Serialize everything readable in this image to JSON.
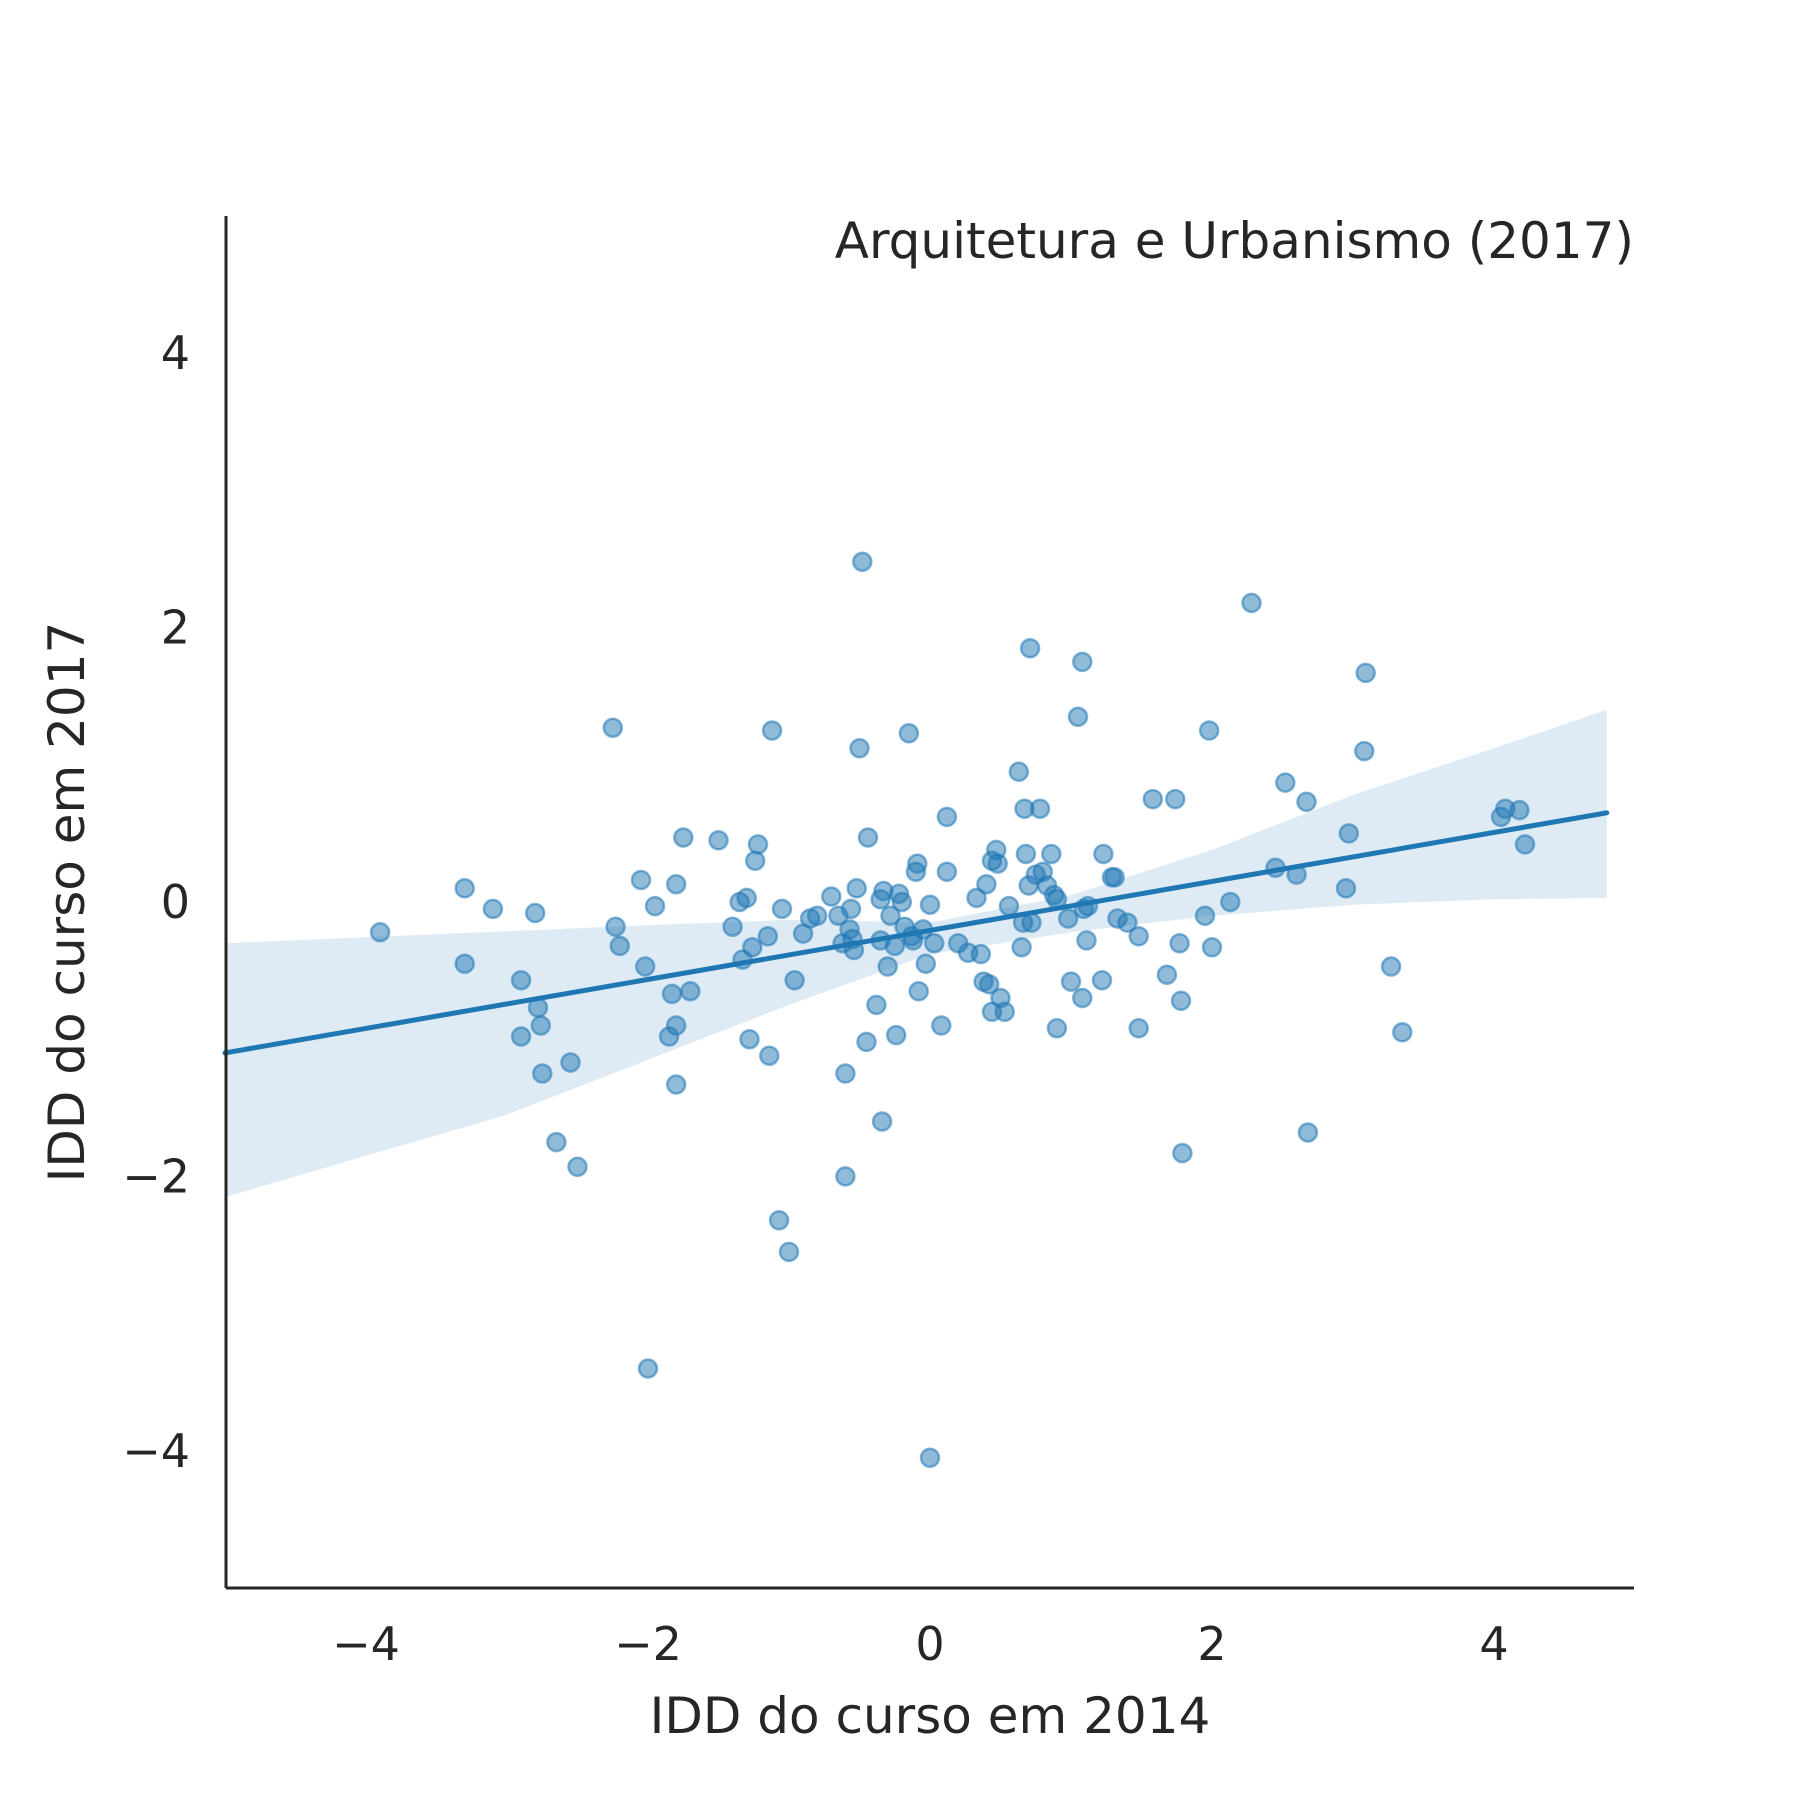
{
  "chart_data": {
    "type": "scatter",
    "title": "Arquitetura e Urbanismo (2017)",
    "xlabel": "IDD do curso em 2014",
    "ylabel": "IDD do curso em 2017",
    "xlim": [
      -5,
      5
    ],
    "ylim": [
      -5,
      5
    ],
    "xticks": [
      -4,
      -2,
      0,
      2,
      4
    ],
    "yticks": [
      -4,
      -2,
      0,
      2,
      4
    ],
    "tick_labels_x": [
      "−4",
      "−2",
      "0",
      "2",
      "4"
    ],
    "tick_labels_y": [
      "−4",
      "−2",
      "0",
      "2",
      "4"
    ],
    "grid": false,
    "colors": {
      "points": "#1f77b4",
      "line": "#1f77b4",
      "band": "#1f77b4"
    },
    "regression": {
      "x": [
        -5,
        4.8
      ],
      "y": [
        -1.1,
        0.65
      ],
      "ci_upper": [
        [
          -5,
          -0.3
        ],
        [
          -2,
          -0.17
        ],
        [
          -1,
          -0.13
        ],
        [
          0,
          -0.15
        ],
        [
          1,
          0.05
        ],
        [
          2,
          0.38
        ],
        [
          3,
          0.78
        ],
        [
          4,
          1.12
        ],
        [
          4.8,
          1.4
        ]
      ],
      "ci_lower": [
        [
          -5,
          -2.15
        ],
        [
          -4,
          -1.85
        ],
        [
          -3,
          -1.55
        ],
        [
          -2,
          -1.15
        ],
        [
          -1,
          -0.75
        ],
        [
          0,
          -0.38
        ],
        [
          1,
          -0.22
        ],
        [
          2,
          -0.1
        ],
        [
          3,
          -0.02
        ],
        [
          4,
          0.02
        ],
        [
          4.8,
          0.03
        ]
      ]
    },
    "points": [
      [
        -3.9,
        -0.22
      ],
      [
        -3.3,
        0.1
      ],
      [
        -3.3,
        -0.45
      ],
      [
        -3.1,
        -0.05
      ],
      [
        -2.9,
        -0.57
      ],
      [
        -2.9,
        -0.98
      ],
      [
        -2.8,
        -0.08
      ],
      [
        -2.78,
        -0.77
      ],
      [
        -2.76,
        -0.9
      ],
      [
        -2.75,
        -1.25
      ],
      [
        -2.65,
        -1.75
      ],
      [
        -2.55,
        -1.17
      ],
      [
        -2.5,
        -1.93
      ],
      [
        -2.25,
        1.27
      ],
      [
        -2.23,
        -0.18
      ],
      [
        -2.2,
        -0.32
      ],
      [
        -2.05,
        0.16
      ],
      [
        -2.02,
        -0.47
      ],
      [
        -2.0,
        -3.4
      ],
      [
        -1.95,
        -0.03
      ],
      [
        -1.85,
        -0.98
      ],
      [
        -1.83,
        -0.67
      ],
      [
        -1.8,
        0.13
      ],
      [
        -1.8,
        -0.9
      ],
      [
        -1.8,
        -1.33
      ],
      [
        -1.75,
        0.47
      ],
      [
        -1.7,
        -0.65
      ],
      [
        -1.5,
        0.45
      ],
      [
        -1.4,
        -0.18
      ],
      [
        -1.35,
        0.0
      ],
      [
        -1.33,
        -0.42
      ],
      [
        -1.3,
        0.03
      ],
      [
        -1.28,
        -1.0
      ],
      [
        -1.26,
        -0.33
      ],
      [
        -1.24,
        0.3
      ],
      [
        -1.22,
        0.42
      ],
      [
        -1.15,
        -0.25
      ],
      [
        -1.14,
        -1.12
      ],
      [
        -1.12,
        1.25
      ],
      [
        -1.07,
        -2.32
      ],
      [
        -1.05,
        -0.05
      ],
      [
        -1.0,
        -2.55
      ],
      [
        -0.96,
        -0.57
      ],
      [
        -0.9,
        -0.23
      ],
      [
        -0.85,
        -0.12
      ],
      [
        -0.8,
        -0.1
      ],
      [
        -0.7,
        0.04
      ],
      [
        -0.65,
        -0.1
      ],
      [
        -0.62,
        -0.3
      ],
      [
        -0.6,
        -1.25
      ],
      [
        -0.6,
        -2.0
      ],
      [
        -0.57,
        -0.2
      ],
      [
        -0.56,
        -0.05
      ],
      [
        -0.55,
        -0.27
      ],
      [
        -0.54,
        -0.35
      ],
      [
        -0.52,
        0.1
      ],
      [
        -0.5,
        1.12
      ],
      [
        -0.48,
        2.48
      ],
      [
        -0.45,
        -1.02
      ],
      [
        -0.44,
        0.47
      ],
      [
        -0.38,
        -0.75
      ],
      [
        -0.35,
        -0.28
      ],
      [
        -0.35,
        0.02
      ],
      [
        -0.34,
        -1.6
      ],
      [
        -0.33,
        0.08
      ],
      [
        -0.3,
        -0.47
      ],
      [
        -0.28,
        -0.1
      ],
      [
        -0.25,
        -0.32
      ],
      [
        -0.24,
        -0.97
      ],
      [
        -0.22,
        0.06
      ],
      [
        -0.2,
        0.0
      ],
      [
        -0.18,
        -0.18
      ],
      [
        -0.15,
        1.23
      ],
      [
        -0.13,
        -0.25
      ],
      [
        -0.12,
        -0.28
      ],
      [
        -0.1,
        0.22
      ],
      [
        -0.09,
        0.28
      ],
      [
        -0.08,
        -0.65
      ],
      [
        -0.05,
        -0.2
      ],
      [
        -0.03,
        -0.45
      ],
      [
        0.0,
        -0.02
      ],
      [
        0.0,
        -4.05
      ],
      [
        0.03,
        -0.3
      ],
      [
        0.08,
        -0.9
      ],
      [
        0.12,
        0.62
      ],
      [
        0.12,
        0.22
      ],
      [
        0.2,
        -0.3
      ],
      [
        0.27,
        -0.37
      ],
      [
        0.33,
        0.03
      ],
      [
        0.36,
        -0.38
      ],
      [
        0.38,
        -0.58
      ],
      [
        0.4,
        0.13
      ],
      [
        0.42,
        -0.6
      ],
      [
        0.44,
        0.3
      ],
      [
        0.44,
        -0.8
      ],
      [
        0.47,
        0.38
      ],
      [
        0.48,
        0.28
      ],
      [
        0.5,
        -0.7
      ],
      [
        0.53,
        -0.8
      ],
      [
        0.56,
        -0.03
      ],
      [
        0.63,
        0.95
      ],
      [
        0.65,
        -0.33
      ],
      [
        0.66,
        -0.15
      ],
      [
        0.67,
        0.68
      ],
      [
        0.68,
        0.35
      ],
      [
        0.7,
        0.12
      ],
      [
        0.71,
        1.85
      ],
      [
        0.72,
        -0.15
      ],
      [
        0.75,
        0.2
      ],
      [
        0.78,
        0.68
      ],
      [
        0.8,
        0.22
      ],
      [
        0.83,
        0.12
      ],
      [
        0.86,
        0.35
      ],
      [
        0.88,
        0.05
      ],
      [
        0.9,
        -0.92
      ],
      [
        0.9,
        0.02
      ],
      [
        0.98,
        -0.12
      ],
      [
        1.0,
        -0.58
      ],
      [
        1.05,
        1.35
      ],
      [
        1.08,
        1.75
      ],
      [
        1.08,
        -0.7
      ],
      [
        1.09,
        -0.05
      ],
      [
        1.11,
        -0.28
      ],
      [
        1.12,
        -0.03
      ],
      [
        1.22,
        -0.57
      ],
      [
        1.23,
        0.35
      ],
      [
        1.29,
        0.18
      ],
      [
        1.31,
        0.18
      ],
      [
        1.33,
        -0.12
      ],
      [
        1.4,
        -0.15
      ],
      [
        1.48,
        -0.25
      ],
      [
        1.48,
        -0.92
      ],
      [
        1.58,
        0.75
      ],
      [
        1.68,
        -0.53
      ],
      [
        1.74,
        0.75
      ],
      [
        1.77,
        -0.3
      ],
      [
        1.78,
        -0.72
      ],
      [
        1.79,
        -1.83
      ],
      [
        1.95,
        -0.1
      ],
      [
        1.98,
        1.25
      ],
      [
        2.0,
        -0.33
      ],
      [
        2.13,
        0.0
      ],
      [
        2.28,
        2.18
      ],
      [
        2.45,
        0.25
      ],
      [
        2.52,
        0.87
      ],
      [
        2.6,
        0.2
      ],
      [
        2.67,
        0.73
      ],
      [
        2.68,
        -1.68
      ],
      [
        2.95,
        0.1
      ],
      [
        2.97,
        0.5
      ],
      [
        3.08,
        1.1
      ],
      [
        3.09,
        1.67
      ],
      [
        3.27,
        -0.47
      ],
      [
        3.35,
        -0.95
      ],
      [
        4.05,
        0.62
      ],
      [
        4.08,
        0.68
      ],
      [
        4.18,
        0.67
      ],
      [
        4.22,
        0.42
      ]
    ]
  }
}
